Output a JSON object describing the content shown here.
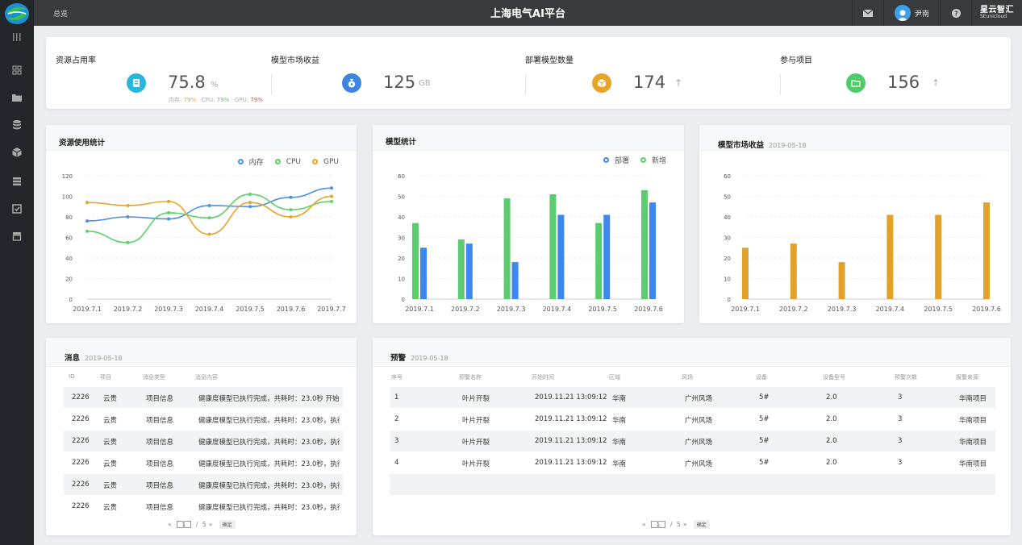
{
  "header": {
    "breadcrumb": "总览",
    "title": "上海电气AI平台",
    "user_name": "尹南",
    "brand_line1": "星云智汇",
    "brand_line2": "SEunicloud"
  },
  "sidebar": {
    "icons": [
      "dashboard-icon",
      "folder-icon",
      "database-icon",
      "cube-icon",
      "list-icon",
      "inbox-icon",
      "archive-icon"
    ]
  },
  "stats": {
    "resource": {
      "label": "资源占用率",
      "value": "75.8",
      "unit": "%",
      "mem_label": "内存:",
      "mem_value": "79%",
      "cpu_label": "CPU:",
      "cpu_value": "79%",
      "gpu_label": "GPU:",
      "gpu_value": "79%"
    },
    "market": {
      "label": "模型市场收益",
      "value": "125",
      "unit": "GB"
    },
    "deploy": {
      "label": "部署模型数量",
      "value": "174",
      "arrow": "↑"
    },
    "projects": {
      "label": "参与项目",
      "value": "156",
      "arrow": "↑"
    }
  },
  "colors": {
    "blue": "#4a90e2",
    "green": "#5cd16b",
    "orange": "#e8a429",
    "bar_blue": "#3a88f0",
    "bar_green": "#5ccc6e",
    "bar_orange": "#e0a22b"
  },
  "cards": {
    "resource_title": "资源使用统计",
    "model_title": "模型统计",
    "market_title": "模型市场收益",
    "market_date": "2019-05-18",
    "messages_title": "消息",
    "messages_date": "2019-05-18",
    "alerts_title": "预警",
    "alerts_date": "2019-05-18"
  },
  "chart_data": [
    {
      "type": "line",
      "title": "资源使用统计",
      "categories": [
        "2019.7.1",
        "2019.7.2",
        "2019.7.3",
        "2019.7.4",
        "2019.7.5",
        "2019.7.6",
        "2019.7.7"
      ],
      "ylim": [
        0,
        120
      ],
      "yticks": [
        0,
        20,
        40,
        60,
        80,
        100,
        120
      ],
      "series": [
        {
          "name": "内存",
          "values": [
            76,
            80,
            78,
            91,
            90,
            99,
            108
          ]
        },
        {
          "name": "CPU",
          "values": [
            66,
            55,
            84,
            79,
            102,
            87,
            95
          ]
        },
        {
          "name": "GPU",
          "values": [
            94,
            91,
            95,
            63,
            94,
            80,
            100
          ]
        }
      ],
      "legend": "top-right",
      "grid": true
    },
    {
      "type": "bar",
      "title": "模型统计",
      "categories": [
        "2019.7.1",
        "2019.7.2",
        "2019.7.3",
        "2019.7.4",
        "2019.7.5",
        "2019.7.6"
      ],
      "ylim": [
        0,
        60
      ],
      "yticks": [
        0,
        10,
        20,
        30,
        40,
        50,
        60
      ],
      "series": [
        {
          "name": "部署",
          "values": [
            25,
            27,
            18,
            41,
            41,
            47
          ]
        },
        {
          "name": "新增",
          "values": [
            37,
            29,
            49,
            51,
            37,
            53
          ]
        }
      ],
      "legend": "top-right",
      "grid": true
    },
    {
      "type": "bar",
      "title": "模型市场收益",
      "categories": [
        "2019.7.1",
        "2019.7.2",
        "2019.7.3",
        "2019.7.4",
        "2019.7.5",
        "2019.7.6"
      ],
      "ylim": [
        0,
        60
      ],
      "yticks": [
        0,
        10,
        20,
        30,
        40,
        50,
        60
      ],
      "values": [
        25,
        27,
        18,
        41,
        41,
        47
      ],
      "grid": true
    }
  ],
  "messages": {
    "headers": [
      "ID",
      "项目",
      "消息类型",
      "消息内容"
    ],
    "rows": [
      [
        "2226",
        "云贵",
        "项目信息",
        "健康度模型已执行完成，共耗时：23.0秒  开始…"
      ],
      [
        "2226",
        "云贵",
        "项目信息",
        "健康度模型已执行完成，共耗时：23.0秒，执行开始…"
      ],
      [
        "2226",
        "云贵",
        "项目信息",
        "健康度模型已执行完成，共耗时：23.0秒，执行开始…"
      ],
      [
        "2226",
        "云贵",
        "项目信息",
        "健康度模型已执行完成，共耗时：23.0秒，执行开始…"
      ],
      [
        "2226",
        "云贵",
        "项目信息",
        "健康度模型已执行完成，共耗时：23.0秒，执行开始…"
      ],
      [
        "2226",
        "云贵",
        "项目信息",
        "健康度模型已执行完成，共耗时：23.0秒，执行开始…"
      ]
    ],
    "pager": {
      "prev": "«",
      "page": "1",
      "sep": "/",
      "total": "5",
      "next": "»",
      "go": "确定"
    }
  },
  "alerts": {
    "headers": [
      "序号",
      "预警名称",
      "开始时间",
      "区域",
      "风场",
      "设备",
      "设备型号",
      "预警次数",
      "报警来源"
    ],
    "rows": [
      [
        "1",
        "叶片开裂",
        "2019.11.21  13:09:12",
        "华南",
        "广州风场",
        "5#",
        "2.0",
        "3",
        "华南项目"
      ],
      [
        "2",
        "叶片开裂",
        "2019.11.21  13:09:12",
        "华南",
        "广州风场",
        "5#",
        "2.0",
        "3",
        "华南项目"
      ],
      [
        "3",
        "叶片开裂",
        "2019.11.21  13:09:12",
        "华南",
        "广州风场",
        "5#",
        "2.0",
        "3",
        "华南项目"
      ],
      [
        "4",
        "叶片开裂",
        "2019.11.21  13:09:12",
        "华南",
        "广州风场",
        "5#",
        "2.0",
        "3",
        "华南项目"
      ]
    ],
    "pager": {
      "prev": "«",
      "page": "1",
      "sep": "/",
      "total": "5",
      "next": "»",
      "go": "确定"
    }
  }
}
